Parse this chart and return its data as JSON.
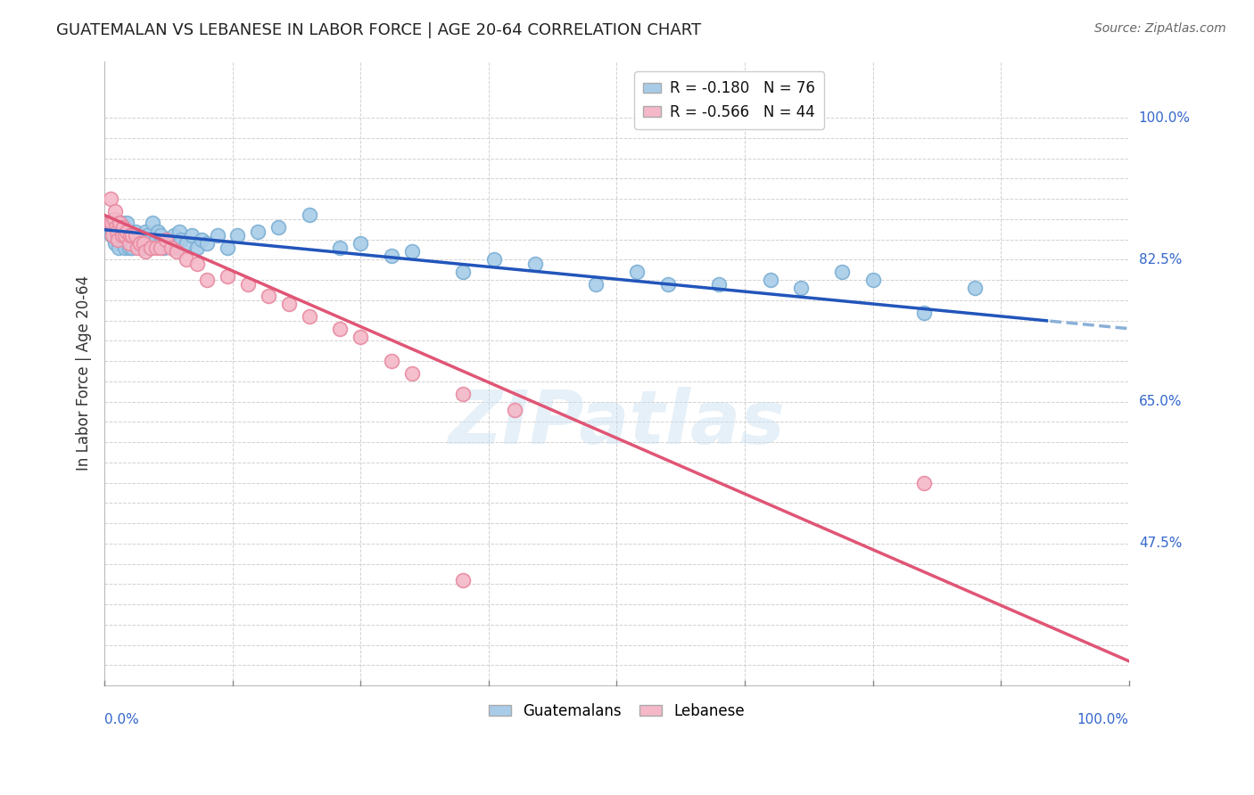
{
  "title": "GUATEMALAN VS LEBANESE IN LABOR FORCE | AGE 20-64 CORRELATION CHART",
  "source": "Source: ZipAtlas.com",
  "ylabel": "In Labor Force | Age 20-64",
  "xlim": [
    0.0,
    1.0
  ],
  "ylim": [
    0.3,
    1.07
  ],
  "watermark": "ZIPatlas",
  "legend_guatemalan": "R = -0.180   N = 76",
  "legend_lebanese": "R = -0.566   N = 44",
  "blue_color": "#a8cce8",
  "blue_edge_color": "#7bafd4",
  "pink_color": "#f4b8c8",
  "pink_edge_color": "#e88aa0",
  "blue_line_color": "#2255bb",
  "pink_line_color": "#e05575",
  "blue_dash_color": "#8ab0d8",
  "right_labels": {
    "1.0": "100.0%",
    "0.825": "82.5%",
    "0.65": "65.0%",
    "0.475": "47.5%"
  },
  "guatemalan_points_x": [
    0.005,
    0.007,
    0.008,
    0.009,
    0.01,
    0.01,
    0.012,
    0.013,
    0.014,
    0.015,
    0.015,
    0.017,
    0.018,
    0.019,
    0.02,
    0.02,
    0.022,
    0.023,
    0.024,
    0.025,
    0.025,
    0.027,
    0.028,
    0.03,
    0.03,
    0.032,
    0.033,
    0.035,
    0.035,
    0.037,
    0.038,
    0.04,
    0.04,
    0.042,
    0.044,
    0.045,
    0.047,
    0.05,
    0.052,
    0.055,
    0.058,
    0.06,
    0.063,
    0.065,
    0.068,
    0.07,
    0.073,
    0.075,
    0.08,
    0.085,
    0.09,
    0.095,
    0.1,
    0.11,
    0.12,
    0.13,
    0.15,
    0.17,
    0.2,
    0.23,
    0.25,
    0.28,
    0.3,
    0.35,
    0.38,
    0.42,
    0.48,
    0.52,
    0.55,
    0.6,
    0.65,
    0.68,
    0.72,
    0.75,
    0.8,
    0.85
  ],
  "guatemalan_points_y": [
    0.87,
    0.855,
    0.86,
    0.875,
    0.85,
    0.845,
    0.855,
    0.85,
    0.84,
    0.855,
    0.86,
    0.87,
    0.85,
    0.845,
    0.84,
    0.855,
    0.87,
    0.855,
    0.84,
    0.85,
    0.855,
    0.84,
    0.855,
    0.855,
    0.86,
    0.845,
    0.85,
    0.855,
    0.845,
    0.84,
    0.85,
    0.86,
    0.845,
    0.855,
    0.84,
    0.85,
    0.87,
    0.85,
    0.86,
    0.855,
    0.84,
    0.845,
    0.85,
    0.845,
    0.855,
    0.84,
    0.86,
    0.85,
    0.845,
    0.855,
    0.84,
    0.85,
    0.845,
    0.855,
    0.84,
    0.855,
    0.86,
    0.865,
    0.88,
    0.84,
    0.845,
    0.83,
    0.835,
    0.81,
    0.825,
    0.82,
    0.795,
    0.81,
    0.795,
    0.795,
    0.8,
    0.79,
    0.81,
    0.8,
    0.76,
    0.79
  ],
  "lebanese_points_x": [
    0.005,
    0.006,
    0.007,
    0.008,
    0.009,
    0.01,
    0.011,
    0.012,
    0.013,
    0.015,
    0.017,
    0.018,
    0.02,
    0.022,
    0.024,
    0.025,
    0.027,
    0.03,
    0.032,
    0.035,
    0.038,
    0.04,
    0.045,
    0.05,
    0.055,
    0.06,
    0.065,
    0.07,
    0.08,
    0.09,
    0.1,
    0.12,
    0.14,
    0.16,
    0.18,
    0.2,
    0.23,
    0.25,
    0.28,
    0.3,
    0.35,
    0.4,
    0.8,
    0.35
  ],
  "lebanese_points_y": [
    0.87,
    0.9,
    0.87,
    0.855,
    0.875,
    0.885,
    0.865,
    0.86,
    0.85,
    0.87,
    0.855,
    0.865,
    0.855,
    0.86,
    0.845,
    0.855,
    0.855,
    0.855,
    0.84,
    0.845,
    0.845,
    0.835,
    0.84,
    0.84,
    0.84,
    0.85,
    0.84,
    0.835,
    0.825,
    0.82,
    0.8,
    0.805,
    0.795,
    0.78,
    0.77,
    0.755,
    0.74,
    0.73,
    0.7,
    0.685,
    0.66,
    0.64,
    0.55,
    0.43
  ]
}
